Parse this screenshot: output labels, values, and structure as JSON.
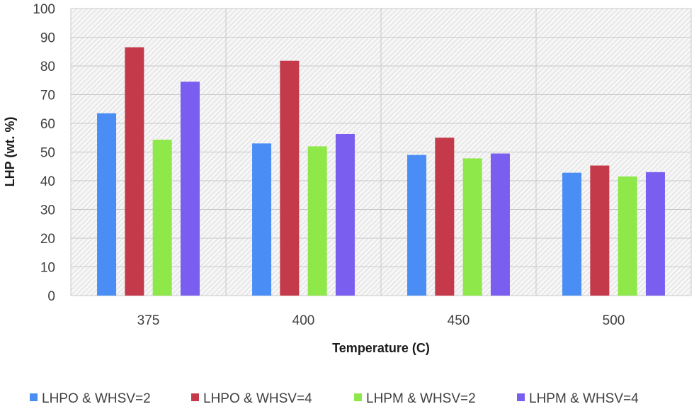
{
  "chart_data": {
    "type": "bar",
    "title": "",
    "xlabel": "Temperature (C)",
    "ylabel": "LHP (wt. %)",
    "categories": [
      "375",
      "400",
      "450",
      "500"
    ],
    "ylim": [
      0,
      100
    ],
    "yticks": [
      "0",
      "10",
      "20",
      "30",
      "40",
      "50",
      "60",
      "70",
      "80",
      "90",
      "100"
    ],
    "grid": true,
    "legend_position": "bottom",
    "series": [
      {
        "name": "LHPO & WHSV=2",
        "color": "#4a8ef5",
        "values": [
          63.5,
          53,
          49,
          42.8
        ]
      },
      {
        "name": "LHPO & WHSV=4",
        "color": "#c53a4a",
        "values": [
          86.5,
          81.8,
          55,
          45.3
        ]
      },
      {
        "name": "LHPM & WHSV=2",
        "color": "#8fe84a",
        "values": [
          54.3,
          52,
          47.8,
          41.5
        ]
      },
      {
        "name": "LHPM & WHSV=4",
        "color": "#7a5ef0",
        "values": [
          74.5,
          56.3,
          49.5,
          43
        ]
      }
    ]
  }
}
